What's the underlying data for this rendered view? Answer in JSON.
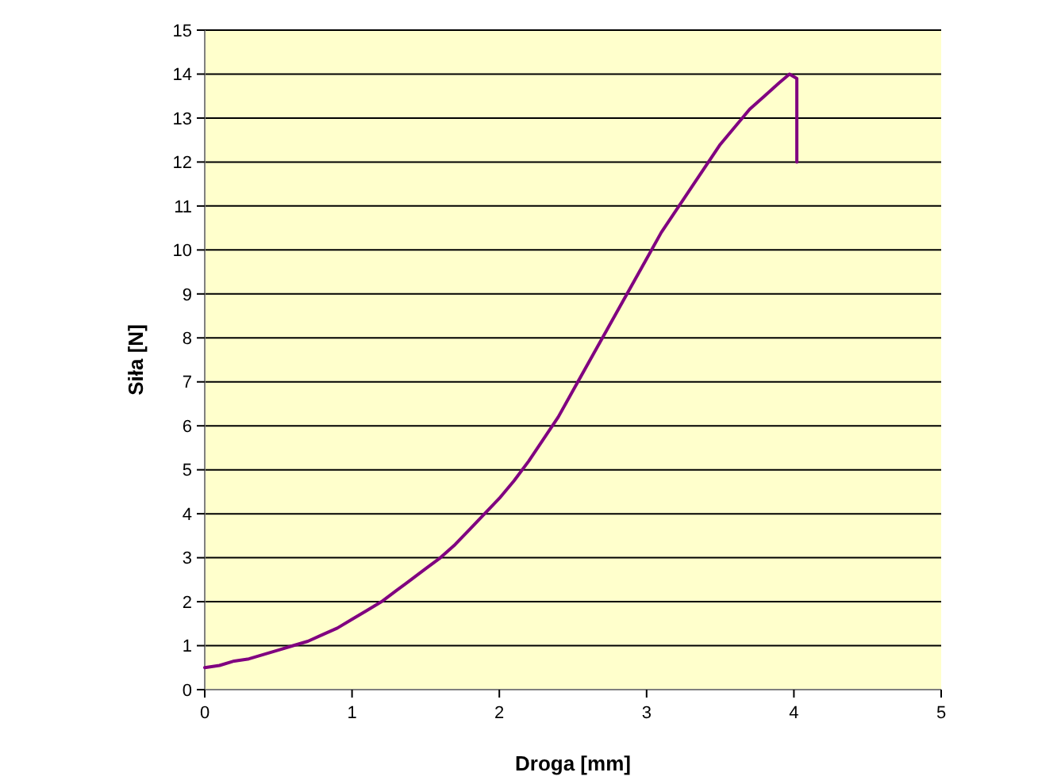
{
  "chart_data": {
    "type": "line",
    "xlabel": "Droga [mm]",
    "ylabel": "Siła [N]",
    "xlim": [
      0,
      5
    ],
    "xticks": [
      0,
      1,
      2,
      3,
      4,
      5
    ],
    "ylim": [
      0,
      15
    ],
    "yticks": [
      0,
      1,
      2,
      3,
      4,
      5,
      6,
      7,
      8,
      9,
      10,
      11,
      12,
      13,
      14,
      15
    ],
    "grid": "y",
    "marker": "none",
    "line_style": "solid",
    "series": [
      {
        "color": "#800080",
        "x": [
          0,
          0.1,
          0.2,
          0.3,
          0.4,
          0.5,
          0.6,
          0.7,
          0.8,
          0.9,
          1.0,
          1.1,
          1.2,
          1.3,
          1.4,
          1.5,
          1.6,
          1.7,
          1.8,
          1.9,
          2.0,
          2.1,
          2.2,
          2.3,
          2.4,
          2.5,
          2.6,
          2.7,
          2.8,
          2.9,
          3.0,
          3.1,
          3.2,
          3.3,
          3.4,
          3.5,
          3.6,
          3.7,
          3.8,
          3.9,
          3.97,
          4.02,
          4.02
        ],
        "values": [
          0.5,
          0.55,
          0.65,
          0.7,
          0.8,
          0.9,
          1.0,
          1.1,
          1.25,
          1.4,
          1.6,
          1.8,
          2.0,
          2.25,
          2.5,
          2.75,
          3.0,
          3.3,
          3.65,
          4.0,
          4.35,
          4.75,
          5.2,
          5.7,
          6.2,
          6.8,
          7.4,
          8.0,
          8.6,
          9.2,
          9.8,
          10.4,
          10.9,
          11.4,
          11.9,
          12.4,
          12.8,
          13.2,
          13.5,
          13.8,
          14.0,
          13.9,
          12.0
        ]
      }
    ]
  }
}
